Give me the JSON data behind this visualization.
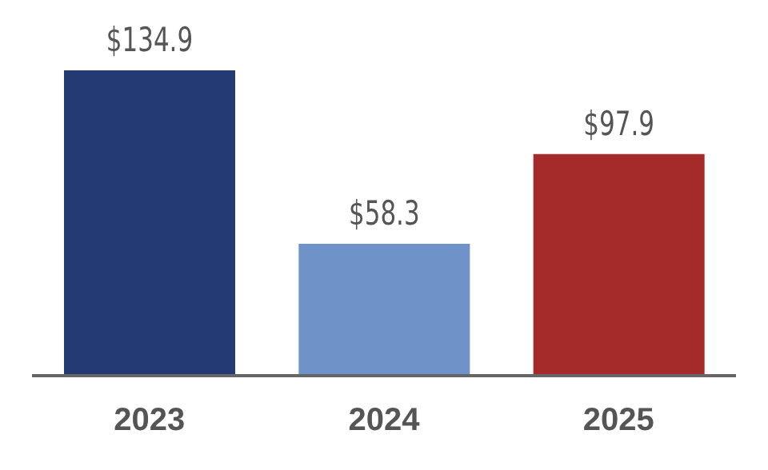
{
  "chart_data": {
    "type": "bar",
    "categories": [
      "2023",
      "2024",
      "2025"
    ],
    "values": [
      134.9,
      58.3,
      97.9
    ],
    "colors": [
      "#243a73",
      "#6f93c8",
      "#a52a2a"
    ],
    "value_labels": [
      "$134.9",
      "$58.3",
      "$97.9"
    ],
    "tick_labels": "x"
  }
}
